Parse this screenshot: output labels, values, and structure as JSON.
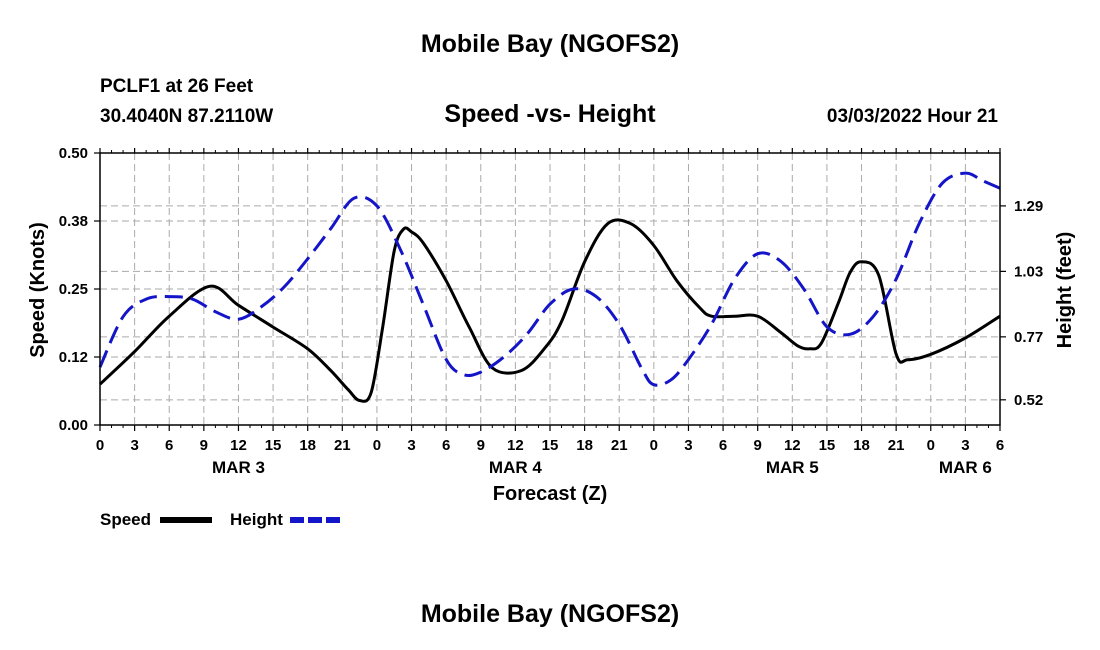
{
  "header": {
    "title": "Mobile Bay (NGOFS2)",
    "station": "PCLF1 at 26 Feet",
    "coords": "30.4040N  87.2110W",
    "datetime": "03/03/2022 Hour 21",
    "footer_title": "Mobile Bay (NGOFS2)"
  },
  "chart_data": {
    "type": "line",
    "title": "Speed -vs- Height",
    "xlabel": "Forecast (Z)",
    "ylabel_left": "Speed (Knots)",
    "ylabel_right": "Height (feet)",
    "x_unit": "hours since 00Z MAR 3",
    "xlim": [
      0,
      78
    ],
    "x_ticks": [
      0,
      3,
      6,
      9,
      12,
      15,
      18,
      21,
      24,
      27,
      30,
      33,
      36,
      39,
      42,
      45,
      48,
      51,
      54,
      57,
      60,
      63,
      66,
      69,
      72,
      75,
      78
    ],
    "x_tick_labels": [
      "0",
      "3",
      "6",
      "9",
      "12",
      "15",
      "18",
      "21",
      "0",
      "3",
      "6",
      "9",
      "12",
      "15",
      "18",
      "21",
      "0",
      "3",
      "6",
      "9",
      "12",
      "15",
      "18",
      "21",
      "0",
      "3",
      "6"
    ],
    "day_labels": [
      {
        "x": 12,
        "label": "MAR 3"
      },
      {
        "x": 36,
        "label": "MAR 4"
      },
      {
        "x": 60,
        "label": "MAR 5"
      },
      {
        "x": 75,
        "label": "MAR 6"
      }
    ],
    "ylim_left": [
      0,
      0.5
    ],
    "y_ticks_left": [
      0,
      0.125,
      0.25,
      0.375,
      0.5
    ],
    "y_tick_labels_left": [
      "0.00",
      "0.12",
      "0.25",
      "0.38",
      "0.50"
    ],
    "ylim_right": [
      0.42,
      1.5
    ],
    "y_ticks_right": [
      0.52,
      0.77,
      1.03,
      1.29
    ],
    "y_tick_labels_right": [
      "0.52",
      "0.77",
      "1.03",
      "1.29"
    ],
    "grid": true,
    "legend": "bottom-left",
    "series": [
      {
        "name": "Speed",
        "axis": "left",
        "color": "#000000",
        "dash": "solid",
        "x": [
          0,
          3,
          6,
          9.5,
          12,
          15,
          18,
          20,
          21.5,
          22.5,
          23.5,
          24.5,
          25.5,
          26.3,
          27,
          28,
          30,
          32,
          34,
          36.5,
          38.5,
          40,
          42,
          44,
          46,
          48,
          50,
          52,
          53,
          55,
          57,
          59,
          60.5,
          61.5,
          62.5,
          64,
          65,
          66,
          67.5,
          69,
          70,
          72,
          75,
          78
        ],
        "y": [
          0.075,
          0.135,
          0.2,
          0.255,
          0.22,
          0.18,
          0.14,
          0.1,
          0.065,
          0.045,
          0.06,
          0.18,
          0.32,
          0.36,
          0.355,
          0.335,
          0.265,
          0.18,
          0.105,
          0.1,
          0.14,
          0.19,
          0.3,
          0.37,
          0.37,
          0.33,
          0.265,
          0.215,
          0.2,
          0.2,
          0.2,
          0.17,
          0.145,
          0.14,
          0.15,
          0.225,
          0.28,
          0.3,
          0.275,
          0.13,
          0.12,
          0.13,
          0.16,
          0.2
        ]
      },
      {
        "name": "Height",
        "axis": "right",
        "color": "#1414c8",
        "dash": "dashed",
        "x": [
          0,
          2,
          4,
          6,
          8,
          10,
          12,
          14,
          16,
          18,
          20,
          22,
          24,
          26,
          28,
          30,
          31.5,
          33,
          35,
          37,
          39,
          41,
          43,
          45,
          47,
          48,
          49.5,
          51,
          53,
          55,
          57,
          59,
          61,
          63,
          65,
          67,
          69,
          71,
          73,
          75,
          76.5,
          78
        ],
        "y": [
          0.65,
          0.85,
          0.92,
          0.93,
          0.92,
          0.87,
          0.84,
          0.89,
          0.97,
          1.08,
          1.2,
          1.32,
          1.29,
          1.12,
          0.9,
          0.68,
          0.62,
          0.63,
          0.69,
          0.78,
          0.9,
          0.96,
          0.93,
          0.82,
          0.64,
          0.58,
          0.6,
          0.68,
          0.82,
          1.0,
          1.1,
          1.07,
          0.96,
          0.81,
          0.78,
          0.85,
          1.0,
          1.22,
          1.38,
          1.42,
          1.39,
          1.36
        ]
      }
    ]
  },
  "legend": {
    "speed_label": "Speed",
    "height_label": "Height"
  }
}
